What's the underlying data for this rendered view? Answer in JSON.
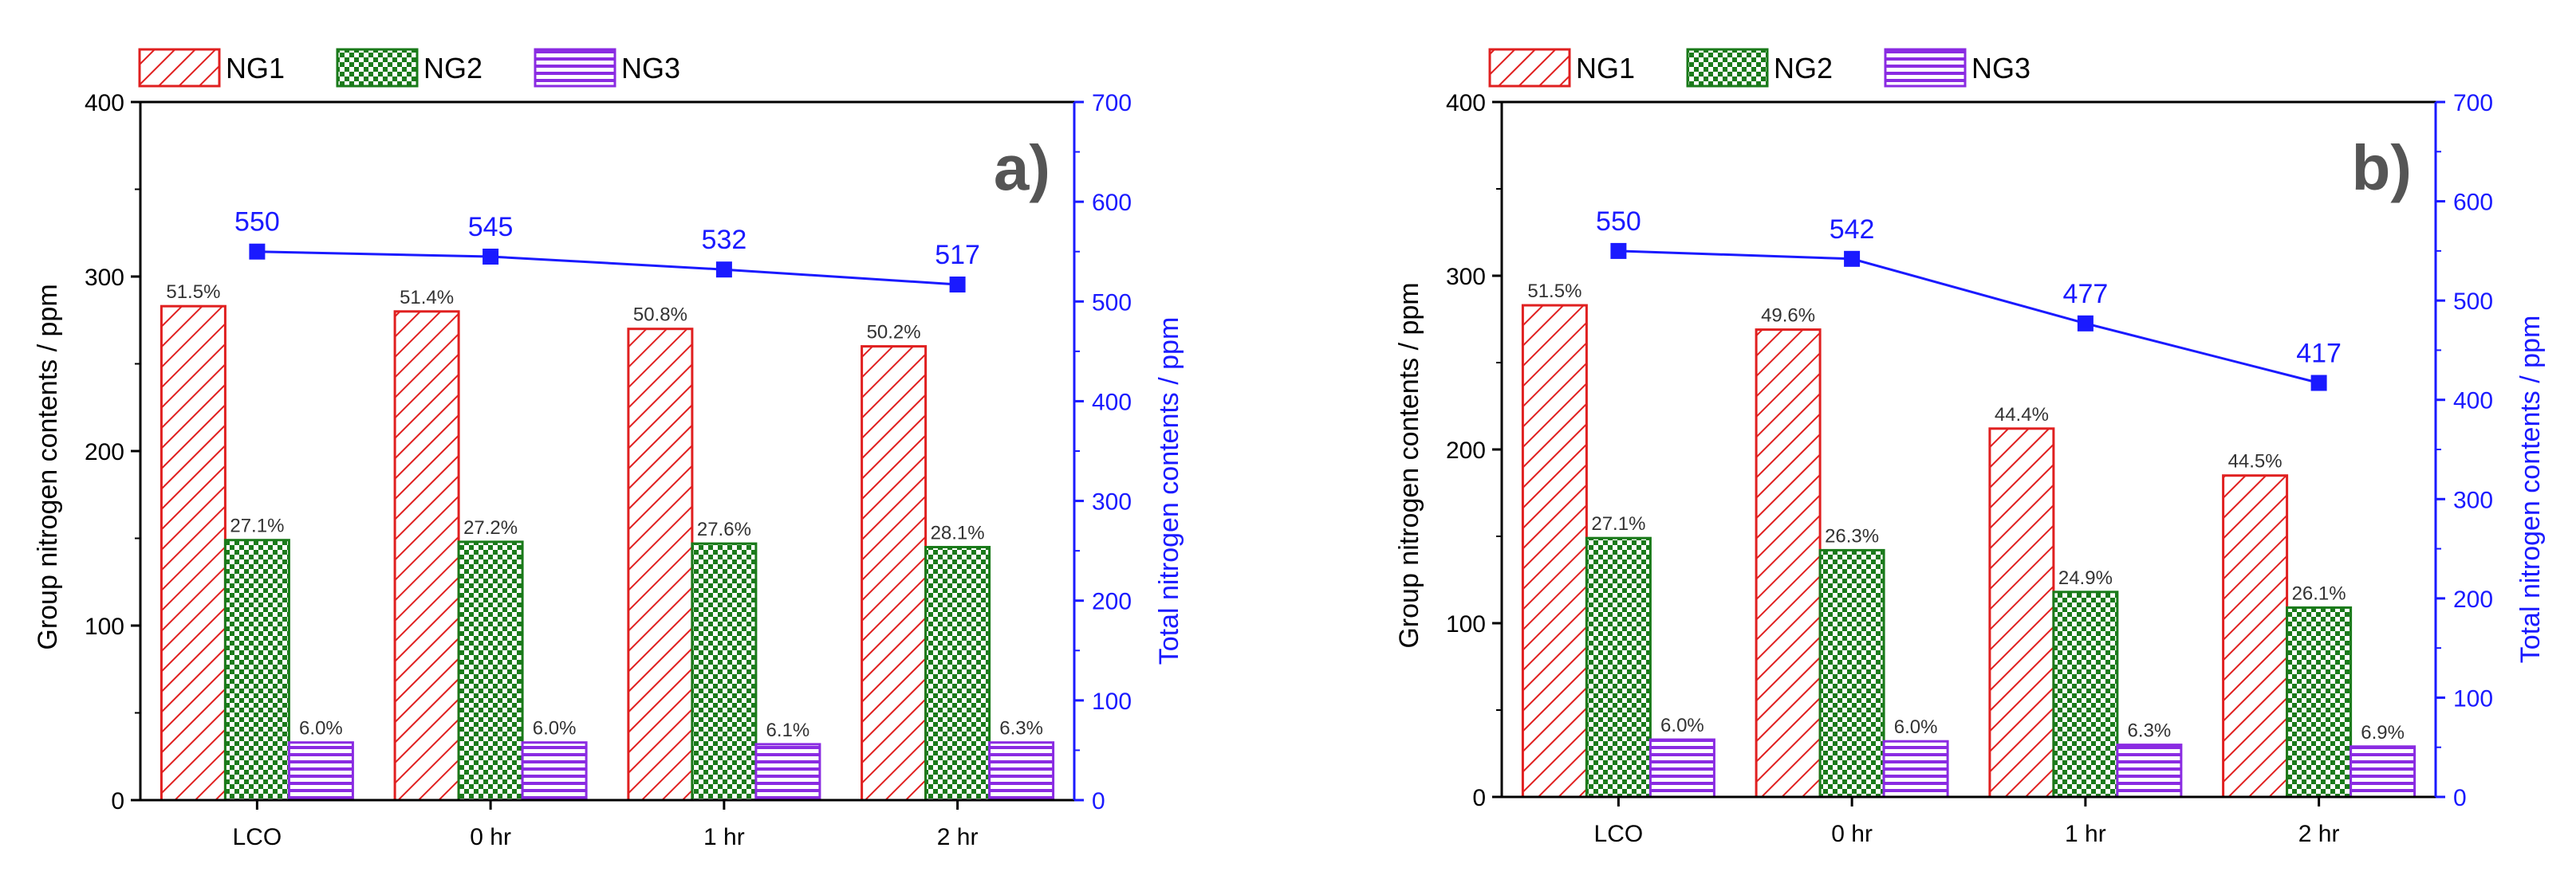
{
  "colors": {
    "ng1": "#e02020",
    "ng2": "#1a7a1a",
    "ng3": "#8a2be2",
    "total": "#1a1aff",
    "axis": "#000000"
  },
  "legend": [
    "NG1",
    "NG2",
    "NG3"
  ],
  "chart_data": [
    {
      "type": "bar",
      "panel_label": "a)",
      "categories": [
        "LCO",
        "0 hr",
        "1 hr",
        "2 hr"
      ],
      "series": [
        {
          "name": "NG1",
          "values": [
            283,
            280,
            270,
            260
          ],
          "labels": [
            "51.5%",
            "51.4%",
            "50.8%",
            "50.2%"
          ]
        },
        {
          "name": "NG2",
          "values": [
            149,
            148,
            147,
            145
          ],
          "labels": [
            "27.1%",
            "27.2%",
            "27.6%",
            "28.1%"
          ]
        },
        {
          "name": "NG3",
          "values": [
            33,
            33,
            32,
            33
          ],
          "labels": [
            "6.0%",
            "6.0%",
            "6.1%",
            "6.3%"
          ]
        }
      ],
      "line": {
        "name": "Total",
        "values": [
          550,
          545,
          532,
          517
        ],
        "labels": [
          "550",
          "545",
          "532",
          "517"
        ]
      },
      "ylabel": "Group nitrogen contents / ppm",
      "y2label": "Total nitrogen contents / ppm",
      "ylim": [
        0,
        400
      ],
      "y2lim": [
        0,
        700
      ],
      "yticks": [
        "0",
        "100",
        "200",
        "300",
        "400"
      ],
      "y2ticks": [
        "0",
        "100",
        "200",
        "300",
        "400",
        "500",
        "600",
        "700"
      ]
    },
    {
      "type": "bar",
      "panel_label": "b)",
      "categories": [
        "LCO",
        "0 hr",
        "1 hr",
        "2 hr"
      ],
      "series": [
        {
          "name": "NG1",
          "values": [
            283,
            269,
            212,
            185
          ],
          "labels": [
            "51.5%",
            "49.6%",
            "44.4%",
            "44.5%"
          ]
        },
        {
          "name": "NG2",
          "values": [
            149,
            142,
            118,
            109
          ],
          "labels": [
            "27.1%",
            "26.3%",
            "24.9%",
            "26.1%"
          ]
        },
        {
          "name": "NG3",
          "values": [
            33,
            32,
            30,
            29
          ],
          "labels": [
            "6.0%",
            "6.0%",
            "6.3%",
            "6.9%"
          ]
        }
      ],
      "line": {
        "name": "Total",
        "values": [
          550,
          542,
          477,
          417
        ],
        "labels": [
          "550",
          "542",
          "477",
          "417"
        ]
      },
      "ylabel": "Group nitrogen contents / ppm",
      "y2label": "Total nitrogen contents / ppm",
      "ylim": [
        0,
        400
      ],
      "y2lim": [
        0,
        700
      ],
      "yticks": [
        "0",
        "100",
        "200",
        "300",
        "400"
      ],
      "y2ticks": [
        "0",
        "100",
        "200",
        "300",
        "400",
        "500",
        "600",
        "700"
      ]
    }
  ]
}
